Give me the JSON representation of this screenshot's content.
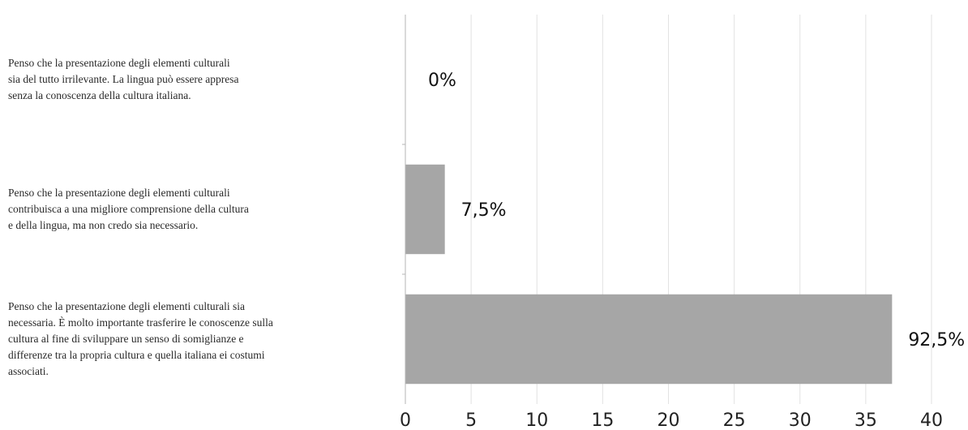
{
  "chart_data": {
    "type": "bar",
    "orientation": "horizontal",
    "categories": [
      [
        "Penso che la presentazione degli elementi culturali",
        "sia del tutto irrilevante. La lingua può essere appresa",
        "senza la conoscenza della cultura italiana."
      ],
      [
        "Penso che la presentazione degli elementi culturali",
        "contribuisca a una migliore comprensione della cultura",
        "e della lingua, ma non credo sia necessario."
      ],
      [
        "Penso che la presentazione degli elementi culturali sia",
        "necessaria. È molto importante trasferire le conoscenze sulla",
        "cultura al fine di sviluppare un senso di somiglianze e",
        "differenze tra la propria cultura e quella italiana ei costumi",
        "associati."
      ]
    ],
    "values": [
      0,
      3,
      37
    ],
    "data_labels": [
      "0%",
      "7,5%",
      "92,5%"
    ],
    "xlim": [
      0,
      40
    ],
    "xticks": [
      0,
      5,
      10,
      15,
      20,
      25,
      30,
      35,
      40
    ],
    "title": "",
    "xlabel": "",
    "ylabel": "",
    "grid": "vertical",
    "bar_color": "#a6a6a6",
    "grid_color": "#e2e2e2",
    "axis_color": "#b5b5b5"
  }
}
